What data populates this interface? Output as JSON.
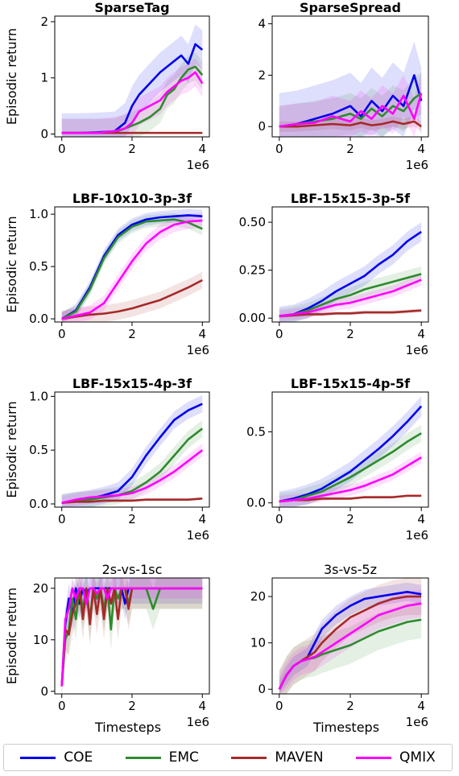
{
  "figure": {
    "ylabel": "Episodic return",
    "xlabel": "Timesteps",
    "x_offset_label": "1e6",
    "series_colors": {
      "COE": "#0000ee",
      "EMC": "#2e8b2e",
      "MAVEN": "#a52a2a",
      "QMIX": "#ff00ff"
    }
  },
  "legend": [
    {
      "name": "COE",
      "color": "#0000ee"
    },
    {
      "name": "EMC",
      "color": "#2e8b2e"
    },
    {
      "name": "MAVEN",
      "color": "#a52a2a"
    },
    {
      "name": "QMIX",
      "color": "#ff00ff"
    }
  ],
  "chart_data": [
    {
      "type": "line",
      "title": "SparseTag",
      "title_bold": true,
      "x": [
        0,
        0.5,
        1.0,
        1.5,
        1.8,
        2.0,
        2.2,
        2.5,
        2.8,
        3.0,
        3.2,
        3.4,
        3.6,
        3.8,
        4.0
      ],
      "xlim": [
        -0.2,
        4.2
      ],
      "xticks": [
        0,
        2,
        4
      ],
      "ylim": [
        -0.05,
        2.1
      ],
      "yticks": [
        0,
        1,
        2
      ],
      "ytick_labels": [
        "0",
        "1",
        "2"
      ],
      "series": [
        {
          "name": "COE",
          "values": [
            0.02,
            0.02,
            0.03,
            0.05,
            0.2,
            0.5,
            0.7,
            0.9,
            1.1,
            1.2,
            1.3,
            1.4,
            1.25,
            1.6,
            1.5
          ],
          "band": 0.35
        },
        {
          "name": "EMC",
          "values": [
            0.02,
            0.02,
            0.02,
            0.03,
            0.1,
            0.15,
            0.2,
            0.3,
            0.45,
            0.7,
            0.8,
            1.0,
            1.15,
            1.2,
            1.05
          ],
          "band": 0.25
        },
        {
          "name": "MAVEN",
          "values": [
            0.02,
            0.02,
            0.02,
            0.02,
            0.02,
            0.02,
            0.02,
            0.02,
            0.02,
            0.02,
            0.02,
            0.02,
            0.02,
            0.02,
            0.02
          ],
          "band": 0.02
        },
        {
          "name": "QMIX",
          "values": [
            0.02,
            0.02,
            0.02,
            0.05,
            0.1,
            0.2,
            0.4,
            0.5,
            0.6,
            0.75,
            0.85,
            0.95,
            1.0,
            1.1,
            0.9
          ],
          "band": 0.25
        }
      ]
    },
    {
      "type": "line",
      "title": "SparseSpread",
      "title_bold": true,
      "x": [
        0,
        0.5,
        1.0,
        1.5,
        2.0,
        2.3,
        2.6,
        2.9,
        3.2,
        3.5,
        3.8,
        4.0
      ],
      "xlim": [
        -0.2,
        4.2
      ],
      "xticks": [
        0,
        2,
        4
      ],
      "ylim": [
        -0.4,
        4.3
      ],
      "yticks": [
        0,
        2,
        4
      ],
      "ytick_labels": [
        "0",
        "2",
        "4"
      ],
      "series": [
        {
          "name": "COE",
          "values": [
            0.0,
            0.1,
            0.3,
            0.5,
            0.8,
            0.4,
            1.0,
            0.6,
            1.2,
            0.8,
            2.0,
            1.0
          ],
          "band": 1.3
        },
        {
          "name": "EMC",
          "values": [
            0.0,
            0.1,
            0.2,
            0.3,
            0.5,
            0.3,
            0.7,
            0.4,
            0.8,
            0.6,
            1.1,
            1.3
          ],
          "band": 0.8
        },
        {
          "name": "MAVEN",
          "values": [
            0.0,
            0.0,
            0.05,
            0.1,
            0.05,
            0.15,
            0.05,
            0.1,
            0.2,
            0.1,
            0.2,
            0.0
          ],
          "band": 0.2
        },
        {
          "name": "QMIX",
          "values": [
            0.0,
            0.1,
            0.15,
            0.4,
            0.2,
            0.6,
            0.3,
            0.8,
            0.5,
            1.2,
            0.3,
            1.3
          ],
          "band": 0.8
        }
      ]
    },
    {
      "type": "line",
      "title": "LBF-10x10-3p-3f",
      "title_bold": true,
      "x": [
        0,
        0.4,
        0.8,
        1.2,
        1.6,
        2.0,
        2.4,
        2.8,
        3.2,
        3.6,
        4.0
      ],
      "xlim": [
        -0.2,
        4.2
      ],
      "xticks": [
        0,
        2,
        4
      ],
      "ylim": [
        -0.03,
        1.07
      ],
      "yticks": [
        0,
        0.5,
        1.0
      ],
      "ytick_labels": [
        "0.0",
        "0.5",
        "1.0"
      ],
      "series": [
        {
          "name": "COE",
          "values": [
            0.0,
            0.08,
            0.3,
            0.6,
            0.8,
            0.9,
            0.95,
            0.97,
            0.98,
            0.99,
            0.98
          ],
          "band": 0.06
        },
        {
          "name": "EMC",
          "values": [
            0.0,
            0.07,
            0.28,
            0.58,
            0.78,
            0.88,
            0.93,
            0.94,
            0.95,
            0.92,
            0.86
          ],
          "band": 0.06
        },
        {
          "name": "MAVEN",
          "values": [
            0.0,
            0.02,
            0.04,
            0.05,
            0.07,
            0.1,
            0.14,
            0.18,
            0.24,
            0.3,
            0.37
          ],
          "band": 0.08
        },
        {
          "name": "QMIX",
          "values": [
            0.0,
            0.03,
            0.06,
            0.15,
            0.35,
            0.55,
            0.72,
            0.83,
            0.9,
            0.93,
            0.94
          ],
          "band": 0.07
        }
      ]
    },
    {
      "type": "line",
      "title": "LBF-15x15-3p-5f",
      "title_bold": true,
      "x": [
        0,
        0.4,
        0.8,
        1.2,
        1.6,
        2.0,
        2.4,
        2.8,
        3.2,
        3.6,
        4.0
      ],
      "xlim": [
        -0.2,
        4.2
      ],
      "xticks": [
        0,
        2,
        4
      ],
      "ylim": [
        -0.02,
        0.58
      ],
      "yticks": [
        0,
        0.25,
        0.5
      ],
      "ytick_labels": [
        "0.00",
        "0.25",
        "0.50"
      ],
      "series": [
        {
          "name": "COE",
          "values": [
            0.01,
            0.02,
            0.05,
            0.09,
            0.14,
            0.18,
            0.22,
            0.28,
            0.33,
            0.4,
            0.45
          ],
          "band": 0.05
        },
        {
          "name": "EMC",
          "values": [
            0.01,
            0.02,
            0.04,
            0.07,
            0.1,
            0.12,
            0.15,
            0.17,
            0.19,
            0.21,
            0.23
          ],
          "band": 0.04
        },
        {
          "name": "MAVEN",
          "values": [
            0.01,
            0.015,
            0.02,
            0.02,
            0.025,
            0.025,
            0.03,
            0.03,
            0.03,
            0.035,
            0.04
          ],
          "band": 0.01
        },
        {
          "name": "QMIX",
          "values": [
            0.01,
            0.02,
            0.03,
            0.05,
            0.07,
            0.08,
            0.1,
            0.12,
            0.14,
            0.17,
            0.2
          ],
          "band": 0.03
        }
      ]
    },
    {
      "type": "line",
      "title": "LBF-15x15-4p-3f",
      "title_bold": true,
      "x": [
        0,
        0.4,
        0.8,
        1.2,
        1.6,
        2.0,
        2.4,
        2.8,
        3.2,
        3.6,
        4.0
      ],
      "xlim": [
        -0.2,
        4.2
      ],
      "xticks": [
        0,
        2,
        4
      ],
      "ylim": [
        -0.03,
        1.04
      ],
      "yticks": [
        0,
        0.5,
        1.0
      ],
      "ytick_labels": [
        "0.0",
        "0.5",
        "1.0"
      ],
      "series": [
        {
          "name": "COE",
          "values": [
            0.01,
            0.03,
            0.05,
            0.08,
            0.12,
            0.25,
            0.45,
            0.62,
            0.78,
            0.87,
            0.93
          ],
          "band": 0.08
        },
        {
          "name": "EMC",
          "values": [
            0.01,
            0.03,
            0.04,
            0.06,
            0.08,
            0.12,
            0.2,
            0.3,
            0.45,
            0.6,
            0.7
          ],
          "band": 0.08
        },
        {
          "name": "MAVEN",
          "values": [
            0.01,
            0.02,
            0.02,
            0.03,
            0.03,
            0.03,
            0.04,
            0.04,
            0.04,
            0.04,
            0.05
          ],
          "band": 0.01
        },
        {
          "name": "QMIX",
          "values": [
            0.01,
            0.04,
            0.06,
            0.07,
            0.08,
            0.1,
            0.15,
            0.22,
            0.3,
            0.4,
            0.5
          ],
          "band": 0.06
        }
      ]
    },
    {
      "type": "line",
      "title": "LBF-15x15-4p-5f",
      "title_bold": true,
      "x": [
        0,
        0.4,
        0.8,
        1.2,
        1.6,
        2.0,
        2.4,
        2.8,
        3.2,
        3.6,
        4.0
      ],
      "xlim": [
        -0.2,
        4.2
      ],
      "xticks": [
        0,
        2,
        4
      ],
      "ylim": [
        -0.03,
        0.78
      ],
      "yticks": [
        0,
        0.5
      ],
      "ytick_labels": [
        "0.0",
        "0.5"
      ],
      "series": [
        {
          "name": "COE",
          "values": [
            0.01,
            0.03,
            0.06,
            0.1,
            0.16,
            0.22,
            0.3,
            0.38,
            0.47,
            0.57,
            0.68
          ],
          "band": 0.07
        },
        {
          "name": "EMC",
          "values": [
            0.01,
            0.02,
            0.05,
            0.08,
            0.13,
            0.18,
            0.24,
            0.3,
            0.36,
            0.43,
            0.49
          ],
          "band": 0.06
        },
        {
          "name": "MAVEN",
          "values": [
            0.01,
            0.02,
            0.02,
            0.03,
            0.03,
            0.03,
            0.04,
            0.04,
            0.04,
            0.05,
            0.05
          ],
          "band": 0.01
        },
        {
          "name": "QMIX",
          "values": [
            0.01,
            0.02,
            0.03,
            0.05,
            0.07,
            0.09,
            0.12,
            0.16,
            0.2,
            0.26,
            0.32
          ],
          "band": 0.04
        }
      ]
    },
    {
      "type": "line",
      "title": "2s-vs-1sc",
      "title_bold": false,
      "x": [
        0,
        0.1,
        0.2,
        0.3,
        0.4,
        0.5,
        0.6,
        0.7,
        0.8,
        0.9,
        1.0,
        1.1,
        1.2,
        1.3,
        1.4,
        1.5,
        1.6,
        1.7,
        1.8,
        1.9,
        2.0,
        2.2,
        2.4,
        2.6,
        2.8,
        3.0,
        3.2,
        3.4,
        3.6,
        3.8,
        4.0
      ],
      "xlim": [
        -0.2,
        4.2
      ],
      "xticks": [
        0,
        2,
        4
      ],
      "ylim": [
        -0.5,
        22
      ],
      "yticks": [
        0,
        10,
        20
      ],
      "ytick_labels": [
        "0",
        "10",
        "20"
      ],
      "series": [
        {
          "name": "COE",
          "values": [
            1,
            13,
            18,
            15,
            20,
            17,
            20,
            19,
            20,
            20,
            20,
            20,
            20,
            20,
            20,
            20,
            20,
            20,
            17,
            20,
            20,
            20,
            20,
            20,
            20,
            20,
            20,
            20,
            20,
            20,
            20
          ],
          "band": 3
        },
        {
          "name": "EMC",
          "values": [
            1,
            10,
            12,
            18,
            14,
            20,
            16,
            20,
            14,
            20,
            18,
            20,
            16,
            20,
            12,
            20,
            18,
            20,
            20,
            17,
            20,
            20,
            20,
            16,
            20,
            20,
            20,
            20,
            20,
            20,
            20
          ],
          "band": 4
        },
        {
          "name": "MAVEN",
          "values": [
            1,
            12,
            11,
            15,
            17,
            20,
            14,
            20,
            13,
            20,
            15,
            20,
            14,
            20,
            17,
            20,
            14,
            20,
            20,
            16,
            20,
            20,
            20,
            20,
            20,
            20,
            20,
            20,
            20,
            20,
            20
          ],
          "band": 4
        },
        {
          "name": "QMIX",
          "values": [
            1,
            14,
            16,
            20,
            18,
            20,
            20,
            17,
            20,
            20,
            19,
            20,
            20,
            18,
            20,
            20,
            20,
            20,
            20,
            20,
            20,
            20,
            20,
            20,
            20,
            20,
            20,
            20,
            20,
            20,
            20
          ],
          "band": 2
        }
      ]
    },
    {
      "type": "line",
      "title": "3s-vs-5z",
      "title_bold": false,
      "x": [
        0,
        0.2,
        0.4,
        0.6,
        0.8,
        1.0,
        1.2,
        1.6,
        2.0,
        2.4,
        2.8,
        3.2,
        3.6,
        4.0
      ],
      "xlim": [
        -0.2,
        4.2
      ],
      "xticks": [
        0,
        2,
        4
      ],
      "ylim": [
        -1,
        24
      ],
      "yticks": [
        0,
        10,
        20
      ],
      "ytick_labels": [
        "0",
        "10",
        "20"
      ],
      "series": [
        {
          "name": "COE",
          "values": [
            0,
            3,
            5,
            6,
            7,
            10,
            13,
            16,
            18,
            19.5,
            20,
            20.5,
            21,
            20.5
          ],
          "band": 2
        },
        {
          "name": "EMC",
          "values": [
            0,
            3,
            5,
            6,
            6.5,
            6.8,
            7.5,
            8.5,
            9.5,
            11,
            12.5,
            13.5,
            14.5,
            15
          ],
          "band": 4
        },
        {
          "name": "MAVEN",
          "values": [
            0,
            3,
            5,
            6,
            7,
            8,
            10,
            13,
            15.5,
            17,
            18.5,
            19.5,
            20,
            20
          ],
          "band": 4
        },
        {
          "name": "QMIX",
          "values": [
            0,
            3,
            5,
            6,
            6.5,
            7,
            8,
            10,
            12,
            14,
            16,
            17,
            18,
            18.5
          ],
          "band": 3
        }
      ]
    }
  ]
}
